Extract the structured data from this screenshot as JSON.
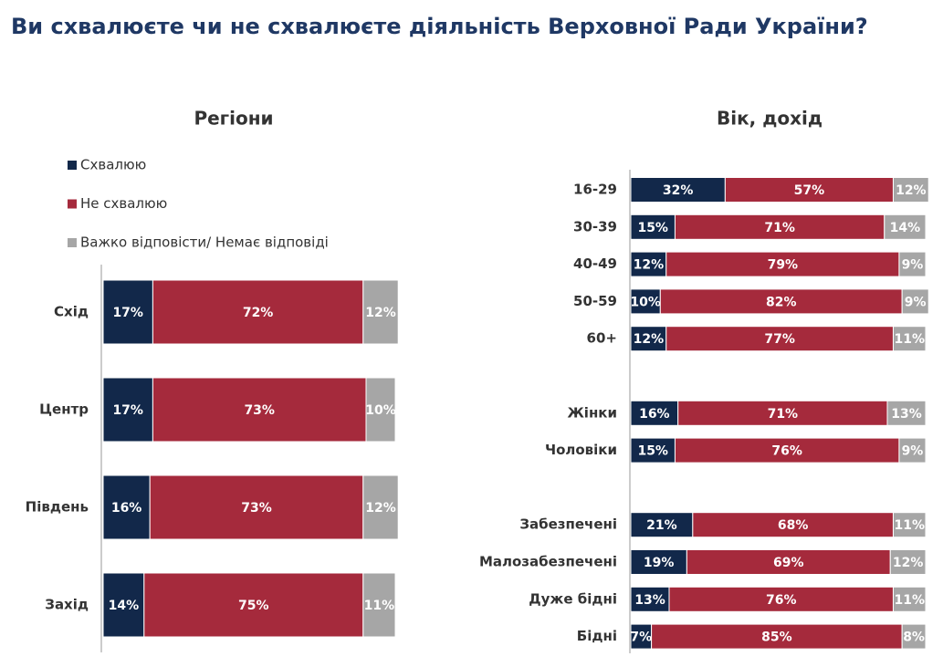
{
  "title": "Ви схвалюєте чи не схвалюєте діяльність Верховної Ради України?",
  "chart_data": [
    {
      "type": "bar",
      "orientation": "horizontal",
      "stacked": true,
      "title": "Регіони",
      "legend": "top-left",
      "categories": [
        "Схід",
        "Центр",
        "Південь",
        "Захід"
      ],
      "series": [
        {
          "name": "Схвалюю",
          "color": "#12284a",
          "values": [
            17,
            17,
            16,
            14
          ],
          "value_labels": [
            "17%",
            "17%",
            "16%",
            "14%"
          ]
        },
        {
          "name": "Не схвалюю",
          "color": "#a52a3c",
          "values": [
            72,
            73,
            73,
            75
          ],
          "value_labels": [
            "72%",
            "73%",
            "73%",
            "75%"
          ]
        },
        {
          "name": "Важко відповісти/ Немає відповіді",
          "color": "#a6a6a6",
          "values": [
            12,
            10,
            12,
            11
          ],
          "value_labels": [
            "12%",
            "10%",
            "12%",
            "11%"
          ]
        }
      ]
    },
    {
      "type": "bar",
      "orientation": "horizontal",
      "stacked": true,
      "title": "Вік, дохід",
      "categories": [
        "16-29",
        "30-39",
        "40-49",
        "50-59",
        "60+",
        null,
        "Жінки",
        "Чоловіки",
        null,
        "Забезпечені",
        "Малозабезпечені",
        "Дуже бідні",
        "Бідні"
      ],
      "series": [
        {
          "color": "#12284a",
          "values": [
            32,
            15,
            12,
            10,
            12,
            null,
            16,
            15,
            null,
            21,
            19,
            13,
            7
          ],
          "value_labels": [
            "32%",
            "15%",
            "12%",
            "10%",
            "12%",
            null,
            "16%",
            "15%",
            null,
            "21%",
            "19%",
            "13%",
            "7%"
          ]
        },
        {
          "color": "#a52a3c",
          "values": [
            57,
            71,
            79,
            82,
            77,
            null,
            71,
            76,
            null,
            68,
            69,
            76,
            85
          ],
          "value_labels": [
            "57%",
            "71%",
            "79%",
            "82%",
            "77%",
            null,
            "71%",
            "76%",
            null,
            "68%",
            "69%",
            "76%",
            "85%"
          ]
        },
        {
          "color": "#a6a6a6",
          "values": [
            12,
            14,
            9,
            9,
            11,
            null,
            13,
            9,
            null,
            11,
            12,
            11,
            8
          ],
          "value_labels": [
            "12%",
            "14%",
            "9%",
            "9%",
            "11%",
            null,
            "13%",
            "9%",
            null,
            "11%",
            "12%",
            "11%",
            "8%"
          ]
        }
      ]
    }
  ]
}
